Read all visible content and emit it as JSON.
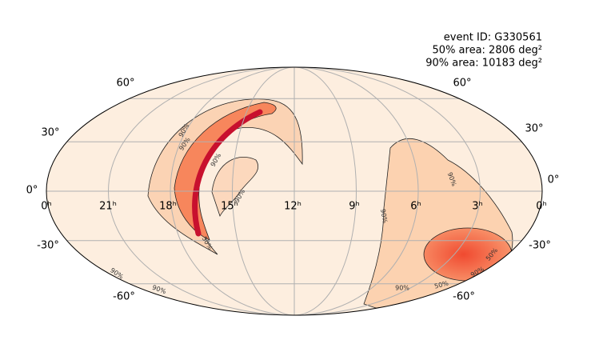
{
  "annotation": {
    "event_id": "event ID: G330561",
    "area_50": "50% area: 2806 deg²",
    "area_90": "90% area: 10183 deg²"
  },
  "lat_labels_left": [
    "60°",
    "30°",
    "0°",
    "-30°",
    "-60°"
  ],
  "lat_labels_right": [
    "60°",
    "30°",
    "0°",
    "-30°",
    "-60°"
  ],
  "ra_labels": [
    "0ʰ",
    "21ʰ",
    "18ʰ",
    "15ʰ",
    "12ʰ",
    "9ʰ",
    "6ʰ",
    "3ʰ",
    "0ʰ"
  ],
  "contour_labels": [
    "90%",
    "90%",
    "90%",
    "90%",
    "50%",
    "90%",
    "90%",
    "90%",
    "50%",
    "90%",
    "50%",
    "90%",
    "90%"
  ]
}
